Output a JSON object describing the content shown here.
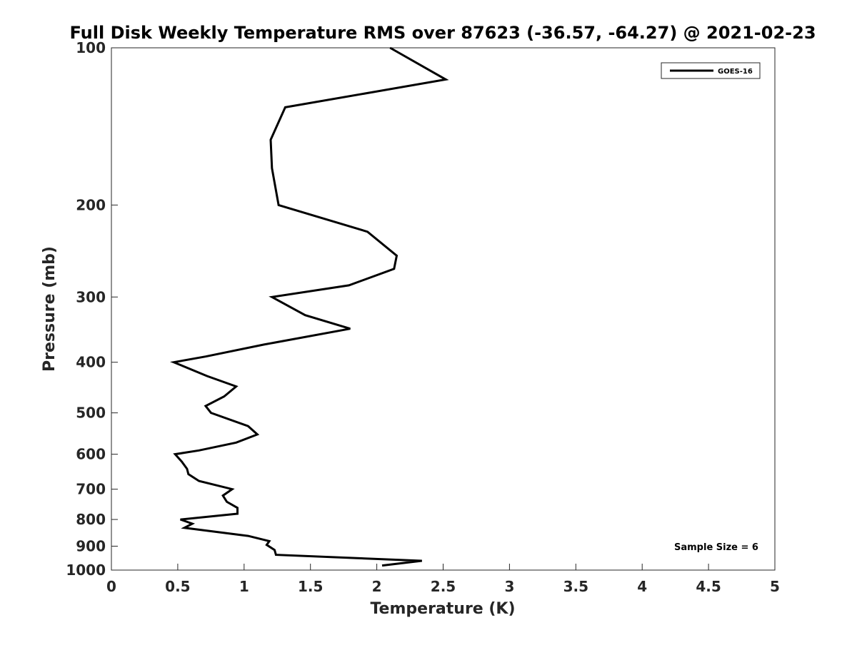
{
  "chart_data": {
    "type": "line",
    "title": "Full Disk Weekly Temperature RMS over 87623 (-36.57, -64.27) @ 2021-02-23",
    "xlabel": "Temperature (K)",
    "ylabel": "Pressure (mb)",
    "xlim": [
      0,
      5
    ],
    "ylim": [
      100,
      1000
    ],
    "yscale": "log",
    "y_reversed": true,
    "x_ticks": [
      "0",
      "0.5",
      "1",
      "1.5",
      "2",
      "2.5",
      "3",
      "3.5",
      "4",
      "4.5",
      "5"
    ],
    "y_ticks": [
      "100",
      "200",
      "300",
      "400",
      "500",
      "600",
      "700",
      "800",
      "900",
      "1000"
    ],
    "grid": false,
    "legend_position": "top-right",
    "annotation": "Sample Size = 6",
    "series": [
      {
        "name": "GOES-16",
        "color": "#000000",
        "x": [
          2.1,
          2.52,
          1.31,
          1.2,
          1.21,
          1.26,
          1.93,
          2.15,
          2.13,
          1.79,
          1.21,
          1.46,
          1.8,
          1.15,
          0.71,
          0.47,
          0.72,
          0.94,
          0.85,
          0.71,
          0.75,
          1.03,
          1.1,
          0.94,
          0.66,
          0.48,
          0.53,
          0.57,
          0.58,
          0.66,
          0.91,
          0.84,
          0.87,
          0.95,
          0.95,
          0.52,
          0.61,
          0.55,
          1.03,
          1.19,
          1.17,
          1.23,
          1.24,
          2.34,
          2.04
        ],
        "y": [
          100,
          115,
          130,
          150,
          170,
          200,
          225,
          250,
          265,
          285,
          300,
          325,
          345,
          370,
          390,
          400,
          425,
          445,
          465,
          485,
          500,
          530,
          550,
          570,
          590,
          600,
          620,
          640,
          655,
          675,
          700,
          720,
          740,
          760,
          780,
          800,
          815,
          830,
          860,
          880,
          895,
          915,
          935,
          960,
          980
        ]
      }
    ]
  }
}
